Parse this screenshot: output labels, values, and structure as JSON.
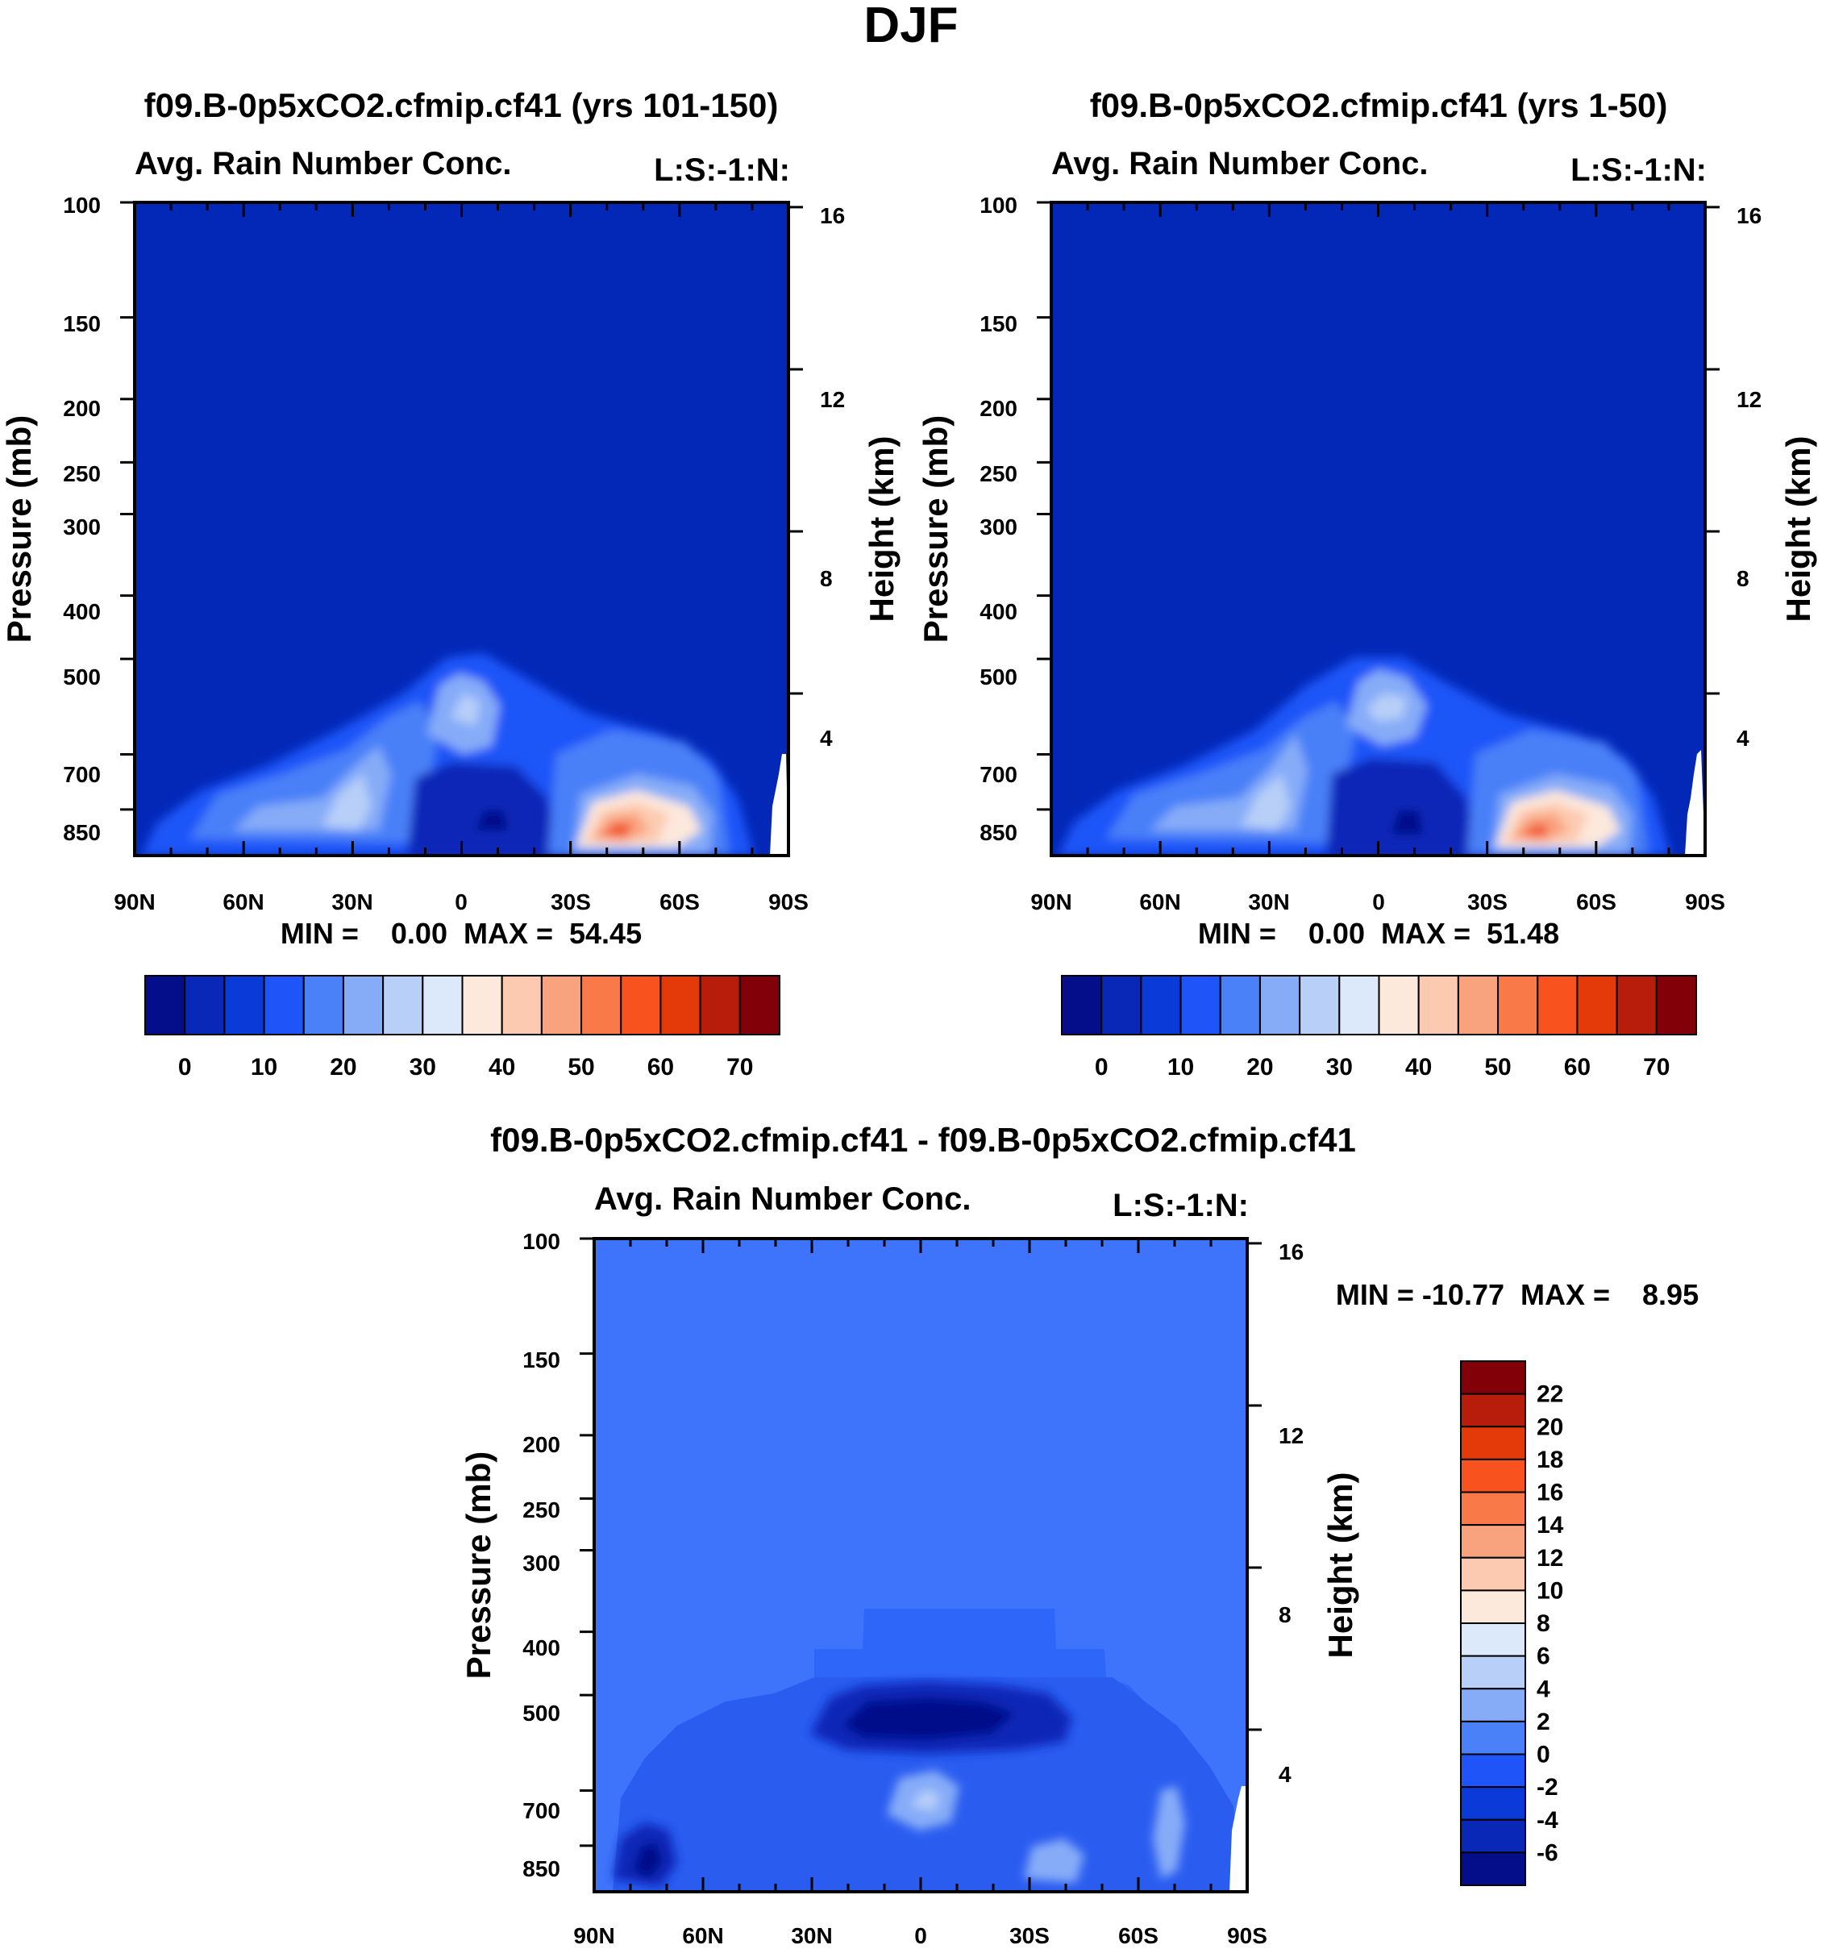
{
  "page_title": "DJF",
  "colors": {
    "background": "#ffffff",
    "field_fill_top": "#0328b8",
    "diff_field_fill": "#3e74fc",
    "warm_core": "#f2512a"
  },
  "full_palette": [
    "#040e8a",
    "#0a28b8",
    "#0a3ad8",
    "#1e54f8",
    "#4a80f8",
    "#86acf8",
    "#b8cff8",
    "#dce9fa",
    "#fde8dc",
    "#fccab0",
    "#f9a37e",
    "#f97a48",
    "#f8521e",
    "#e43a0a",
    "#b81c0a",
    "#820008"
  ],
  "diff_palette": [
    "#040e8a",
    "#0a28b8",
    "#0a3ad8",
    "#1e54f8",
    "#4a80f8",
    "#86acf8",
    "#b8cff8",
    "#dce9fa",
    "#fde8dc",
    "#fccab0",
    "#f9a37e",
    "#f97a48",
    "#f8521e",
    "#e43a0a",
    "#b81c0a",
    "#820008"
  ],
  "chart_data": [
    {
      "type": "heatmap",
      "title": "f09.B-0p5xCO2.cfmip.cf41 (yrs 101-150)",
      "subtitle_left": "Avg. Rain Number Conc.",
      "subtitle_right": "L:S:-1:N:",
      "xlabel": "",
      "ylabel": "Pressure (mb)",
      "ylabel_right": "Height (km)",
      "x_ticklabels": [
        "90N",
        "60N",
        "30N",
        "0",
        "30S",
        "60S",
        "90S"
      ],
      "x_range": [
        90,
        -90
      ],
      "y_ticklabels": [
        "100",
        "150",
        "200",
        "250",
        "300",
        "400",
        "500",
        "700",
        "850"
      ],
      "y_ticks": [
        100,
        150,
        200,
        250,
        300,
        400,
        500,
        700,
        850
      ],
      "y_range": [
        100,
        1000
      ],
      "y_scale": "log",
      "right_ticklabels": [
        "16",
        "12",
        "8",
        "4"
      ],
      "right_ticks": [
        16,
        12,
        8,
        4
      ],
      "stats_text": "MIN =    0.00  MAX =  54.45",
      "colorbar": {
        "orientation": "horizontal",
        "labels": [
          "0",
          "10",
          "20",
          "30",
          "40",
          "50",
          "60",
          "70"
        ],
        "level_min": -5,
        "level_max": 75,
        "level_step": 5
      }
    },
    {
      "type": "heatmap",
      "title": "f09.B-0p5xCO2.cfmip.cf41 (yrs 1-50)",
      "subtitle_left": "Avg. Rain Number Conc.",
      "subtitle_right": "L:S:-1:N:",
      "xlabel": "",
      "ylabel": "Pressure (mb)",
      "ylabel_right": "Height (km)",
      "x_ticklabels": [
        "90N",
        "60N",
        "30N",
        "0",
        "30S",
        "60S",
        "90S"
      ],
      "x_range": [
        90,
        -90
      ],
      "y_ticklabels": [
        "100",
        "150",
        "200",
        "250",
        "300",
        "400",
        "500",
        "700",
        "850"
      ],
      "y_ticks": [
        100,
        150,
        200,
        250,
        300,
        400,
        500,
        700,
        850
      ],
      "y_range": [
        100,
        1000
      ],
      "y_scale": "log",
      "right_ticklabels": [
        "16",
        "12",
        "8",
        "4"
      ],
      "right_ticks": [
        16,
        12,
        8,
        4
      ],
      "stats_text": "MIN =    0.00  MAX =  51.48",
      "colorbar": {
        "orientation": "horizontal",
        "labels": [
          "0",
          "10",
          "20",
          "30",
          "40",
          "50",
          "60",
          "70"
        ],
        "level_min": -5,
        "level_max": 75,
        "level_step": 5
      }
    },
    {
      "type": "heatmap",
      "title": "f09.B-0p5xCO2.cfmip.cf41 - f09.B-0p5xCO2.cfmip.cf41",
      "subtitle_left": "Avg. Rain Number Conc.",
      "subtitle_right": "L:S:-1:N:",
      "xlabel": "",
      "ylabel": "Pressure (mb)",
      "ylabel_right": "Height (km)",
      "x_ticklabels": [
        "90N",
        "60N",
        "30N",
        "0",
        "30S",
        "60S",
        "90S"
      ],
      "x_range": [
        90,
        -90
      ],
      "y_ticklabels": [
        "100",
        "150",
        "200",
        "250",
        "300",
        "400",
        "500",
        "700",
        "850"
      ],
      "y_ticks": [
        100,
        150,
        200,
        250,
        300,
        400,
        500,
        700,
        850
      ],
      "y_range": [
        100,
        1000
      ],
      "y_scale": "log",
      "right_ticklabels": [
        "16",
        "12",
        "8",
        "4"
      ],
      "right_ticks": [
        16,
        12,
        8,
        4
      ],
      "stats_text": "MIN = -10.77  MAX =    8.95",
      "colorbar": {
        "orientation": "vertical",
        "labels": [
          "22",
          "20",
          "18",
          "16",
          "14",
          "12",
          "10",
          "8",
          "6",
          "4",
          "2",
          "0",
          "-2",
          "-4",
          "-6"
        ],
        "level_min": -8,
        "level_max": 24,
        "level_step": 2
      }
    }
  ]
}
